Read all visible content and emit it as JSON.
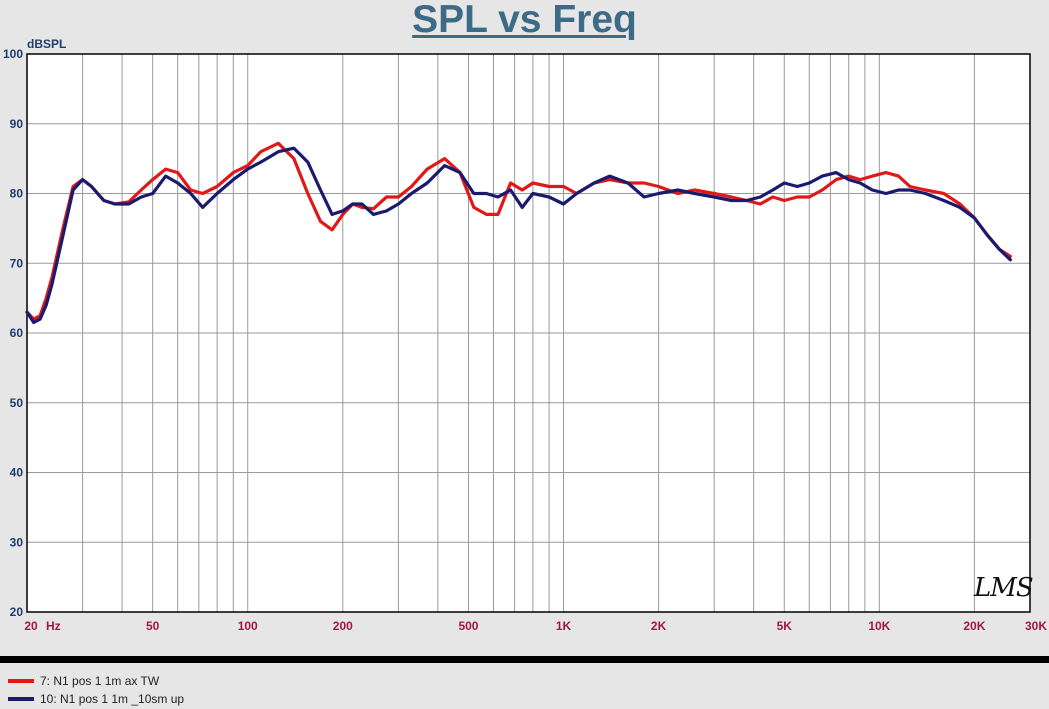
{
  "logo": "LMS",
  "chart_data": {
    "type": "line",
    "title": "SPL vs Freq",
    "ylabel": "dBSPL",
    "xlabel": "",
    "xscale": "log",
    "xlim": [
      20,
      30000
    ],
    "ylim": [
      20,
      100
    ],
    "grid": true,
    "legend_position": "bottom-left",
    "x_ticks": [
      {
        "value": 20,
        "label": "20"
      },
      {
        "value": 50,
        "label": "50"
      },
      {
        "value": 100,
        "label": "100"
      },
      {
        "value": 200,
        "label": "200"
      },
      {
        "value": 500,
        "label": "500"
      },
      {
        "value": 1000,
        "label": "1K"
      },
      {
        "value": 2000,
        "label": "2K"
      },
      {
        "value": 5000,
        "label": "5K"
      },
      {
        "value": 10000,
        "label": "10K"
      },
      {
        "value": 20000,
        "label": "20K"
      },
      {
        "value": 30000,
        "label": "30K"
      }
    ],
    "x_unit": "Hz",
    "y_ticks": [
      20,
      30,
      40,
      50,
      60,
      70,
      80,
      90,
      100
    ],
    "colors": {
      "background": "#e6e6e6",
      "grid": "#9a9a9a",
      "tick_x": "#a01840",
      "tick_y": "#1f3c6e",
      "title": "#3d6a86"
    },
    "series": [
      {
        "name": "7: N1 pos 1 1m ax TW",
        "color": "#e01818",
        "x": [
          20,
          21,
          22,
          23,
          24,
          26,
          28,
          30,
          32,
          35,
          38,
          42,
          46,
          50,
          55,
          60,
          66,
          72,
          80,
          90,
          100,
          110,
          125,
          140,
          155,
          170,
          185,
          200,
          215,
          230,
          250,
          275,
          300,
          330,
          370,
          420,
          470,
          520,
          570,
          620,
          680,
          740,
          800,
          900,
          1000,
          1100,
          1250,
          1400,
          1600,
          1800,
          2000,
          2300,
          2600,
          3000,
          3400,
          3800,
          4200,
          4600,
          5000,
          5500,
          6000,
          6600,
          7300,
          8000,
          8700,
          9500,
          10500,
          11500,
          12500,
          14000,
          16000,
          18000,
          20000,
          22000,
          24000,
          26000
        ],
        "y": [
          63,
          62,
          62.5,
          65,
          68,
          75,
          81,
          82,
          81,
          79,
          78.5,
          78.8,
          80.5,
          82,
          83.5,
          83,
          80.5,
          80,
          81,
          83,
          84,
          86,
          87.2,
          85,
          80,
          76,
          74.8,
          77,
          78.5,
          78,
          77.8,
          79.5,
          79.5,
          81,
          83.5,
          85,
          83,
          78,
          77,
          77,
          81.5,
          80.5,
          81.5,
          81,
          81,
          80,
          81.5,
          82,
          81.5,
          81.5,
          81,
          80,
          80.5,
          80,
          79.5,
          79,
          78.5,
          79.5,
          79,
          79.5,
          79.5,
          80.5,
          82,
          82.5,
          82,
          82.5,
          83,
          82.5,
          81,
          80.5,
          80,
          78.5,
          76.5,
          74,
          72,
          71
        ]
      },
      {
        "name": "10: N1 pos 1 1m _10sm up",
        "color": "#1a1a6e",
        "x": [
          20,
          21,
          22,
          23,
          24,
          26,
          28,
          30,
          32,
          35,
          38,
          42,
          46,
          50,
          55,
          60,
          66,
          72,
          80,
          90,
          100,
          110,
          125,
          140,
          155,
          170,
          185,
          200,
          215,
          230,
          250,
          275,
          300,
          330,
          370,
          420,
          470,
          520,
          570,
          620,
          680,
          740,
          800,
          900,
          1000,
          1100,
          1250,
          1400,
          1600,
          1800,
          2000,
          2300,
          2600,
          3000,
          3400,
          3800,
          4200,
          4600,
          5000,
          5500,
          6000,
          6600,
          7300,
          8000,
          8700,
          9500,
          10500,
          11500,
          12500,
          14000,
          16000,
          18000,
          20000,
          22000,
          24000,
          26000
        ],
        "y": [
          63,
          61.5,
          62,
          64,
          67,
          74,
          80.5,
          82,
          81,
          79,
          78.5,
          78.5,
          79.5,
          80,
          82.5,
          81.5,
          80,
          78,
          80,
          82,
          83.5,
          84.5,
          86,
          86.5,
          84.5,
          80.5,
          77,
          77.5,
          78.5,
          78.5,
          77,
          77.5,
          78.5,
          80,
          81.5,
          84,
          83,
          80,
          80,
          79.5,
          80.5,
          78,
          80,
          79.5,
          78.5,
          80,
          81.5,
          82.5,
          81.5,
          79.5,
          80,
          80.5,
          80,
          79.5,
          79,
          79,
          79.5,
          80.5,
          81.5,
          81,
          81.5,
          82.5,
          83,
          82,
          81.5,
          80.5,
          80,
          80.5,
          80.5,
          80,
          79,
          78,
          76.5,
          74,
          72,
          70.5
        ]
      }
    ]
  }
}
